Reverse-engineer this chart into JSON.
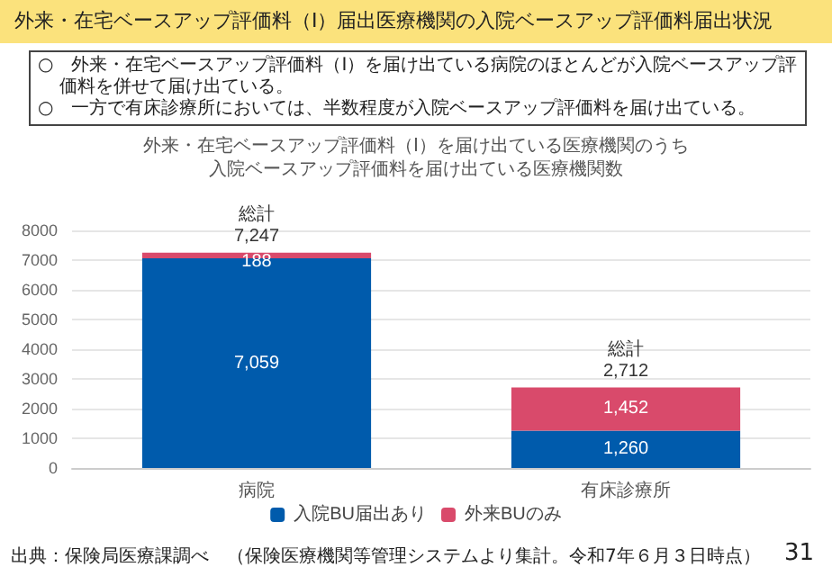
{
  "chart_data": {
    "type": "bar",
    "title": "外来・在宅ベースアップ評価料（Ⅰ）届出医療機関の入院ベースアップ評価料届出状況",
    "subtitle": "外来・在宅ベースアップ評価料（Ⅰ）を届け出ている医療機関のうち入院ベースアップ評価料を届け出ている医療機関数",
    "annotations": [
      "○　外来・在宅ベースアップ評価料（Ⅰ）を届け出ている病院のほとんどが入院ベースアップ評価料を併せて届け出ている。",
      "○　一方で有床診療所においては、半数程度が入院ベースアップ評価料を届け出ている。",
      "出典：保険局医療課調べ　（保険医療機関等管理システムより集計。令和7年６月３日時点）",
      "31"
    ],
    "categories": [
      "病院",
      "有床診療所"
    ],
    "stacked": true,
    "series": [
      {
        "name": "入院BU届出あり",
        "color": "#005bac",
        "values": [
          7059,
          1260
        ],
        "value_labels": [
          "7,059",
          "1,260"
        ]
      },
      {
        "name": "外来BUのみ",
        "color": "#d94a6b",
        "values": [
          188,
          1452
        ],
        "value_labels": [
          "188",
          "1,452"
        ]
      }
    ],
    "totals": [
      "総計\n7,247",
      "総計\n2,712"
    ],
    "ylim": [
      0,
      8000
    ],
    "yticks": [
      0,
      1000,
      2000,
      3000,
      4000,
      5000,
      6000,
      7000,
      8000
    ],
    "grid": "y",
    "legend": "bottom"
  }
}
